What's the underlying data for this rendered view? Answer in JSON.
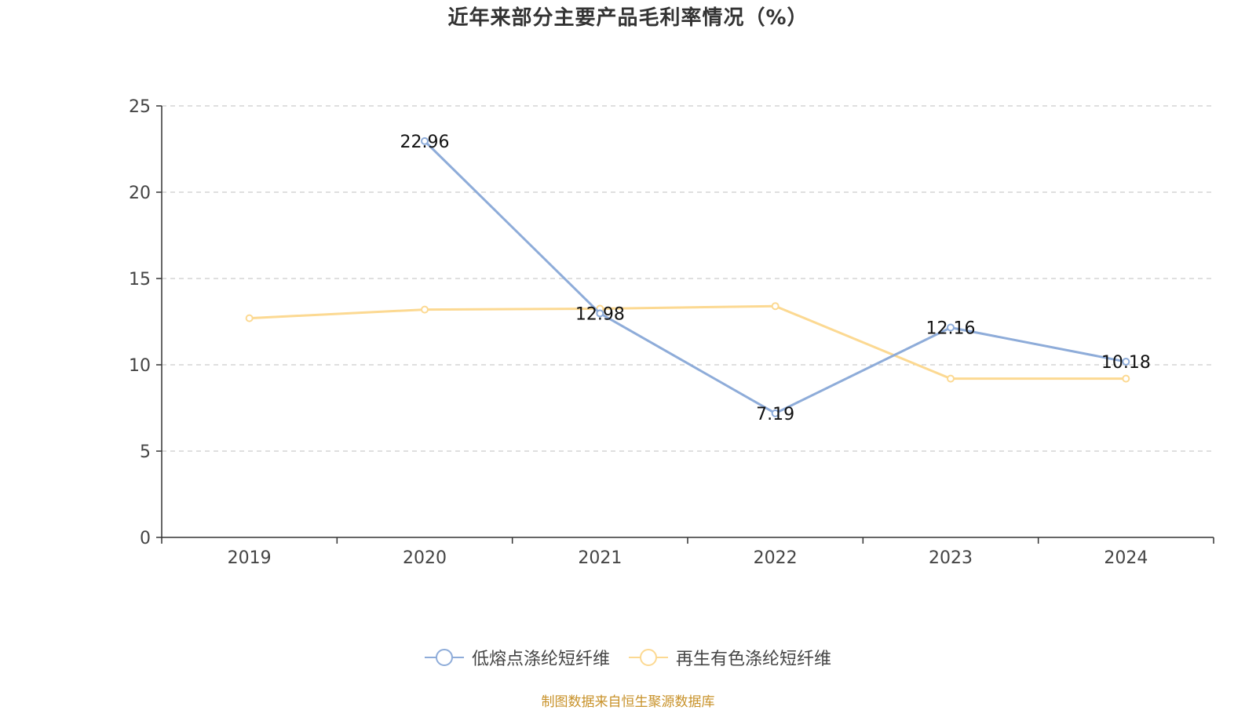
{
  "chart_data": {
    "type": "line",
    "title": "近年来部分主要产品毛利率情况（%）",
    "categories": [
      "2019",
      "2020",
      "2021",
      "2022",
      "2023",
      "2024"
    ],
    "series": [
      {
        "name": "低熔点涤纶短纤维",
        "color": "#8eacd9",
        "values": [
          null,
          22.96,
          12.98,
          7.19,
          12.16,
          10.18
        ],
        "labels": [
          "",
          "22.96",
          "12.98",
          "7.19",
          "12.16",
          "10.18"
        ]
      },
      {
        "name": "再生有色涤纶短纤维",
        "color": "#fcd992",
        "values": [
          12.7,
          13.2,
          13.25,
          13.4,
          9.2,
          9.2
        ],
        "labels": [
          "",
          "",
          "",
          "",
          "",
          ""
        ]
      }
    ],
    "ylim": [
      0,
      25
    ],
    "yticks": [
      0,
      5,
      10,
      15,
      20,
      25
    ],
    "grid": true,
    "legend_position": "bottom"
  },
  "source_note": "制图数据来自恒生聚源数据库"
}
